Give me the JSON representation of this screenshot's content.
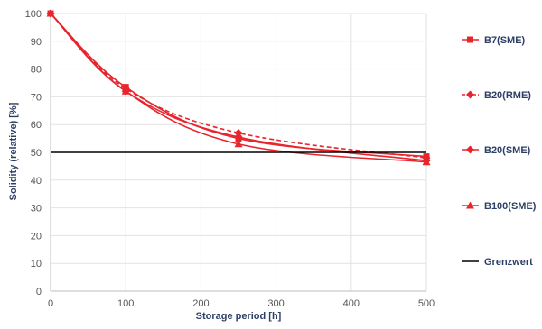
{
  "chart_data": {
    "type": "line",
    "xlabel": "Storage period [h]",
    "ylabel": "Solidity (relative) [%]",
    "x_categories": [
      "0",
      "100",
      "200",
      "300",
      "400",
      "500"
    ],
    "ylim": [
      0,
      100
    ],
    "yticks": [
      "0",
      "10",
      "20",
      "30",
      "40",
      "50",
      "60",
      "70",
      "80",
      "90",
      "100"
    ],
    "grid": true,
    "legend": "right",
    "series": [
      {
        "name": "B7(SME)",
        "marker": "square",
        "dashed": false,
        "color": "#e8242d",
        "x": [
          0,
          100,
          250,
          500
        ],
        "y": [
          100,
          73.5,
          55.0,
          48.5
        ]
      },
      {
        "name": "B20(RME)",
        "marker": "diamond",
        "dashed": true,
        "color": "#e8242d",
        "x": [
          0,
          100,
          250,
          500
        ],
        "y": [
          100,
          73.0,
          57.0,
          48.0
        ]
      },
      {
        "name": "B20(SME)",
        "marker": "diamond",
        "dashed": false,
        "color": "#e8242d",
        "x": [
          0,
          100,
          250,
          500
        ],
        "y": [
          100,
          72.0,
          55.5,
          47.0
        ]
      },
      {
        "name": "B100(SME)",
        "marker": "triangle",
        "dashed": false,
        "color": "#e8242d",
        "x": [
          0,
          100,
          250,
          500
        ],
        "y": [
          100,
          72.0,
          53.0,
          46.5
        ]
      },
      {
        "name": "Grenzwert",
        "marker": "none",
        "dashed": false,
        "color": "#000000",
        "x": [
          0,
          500
        ],
        "y": [
          50,
          50
        ]
      }
    ]
  }
}
